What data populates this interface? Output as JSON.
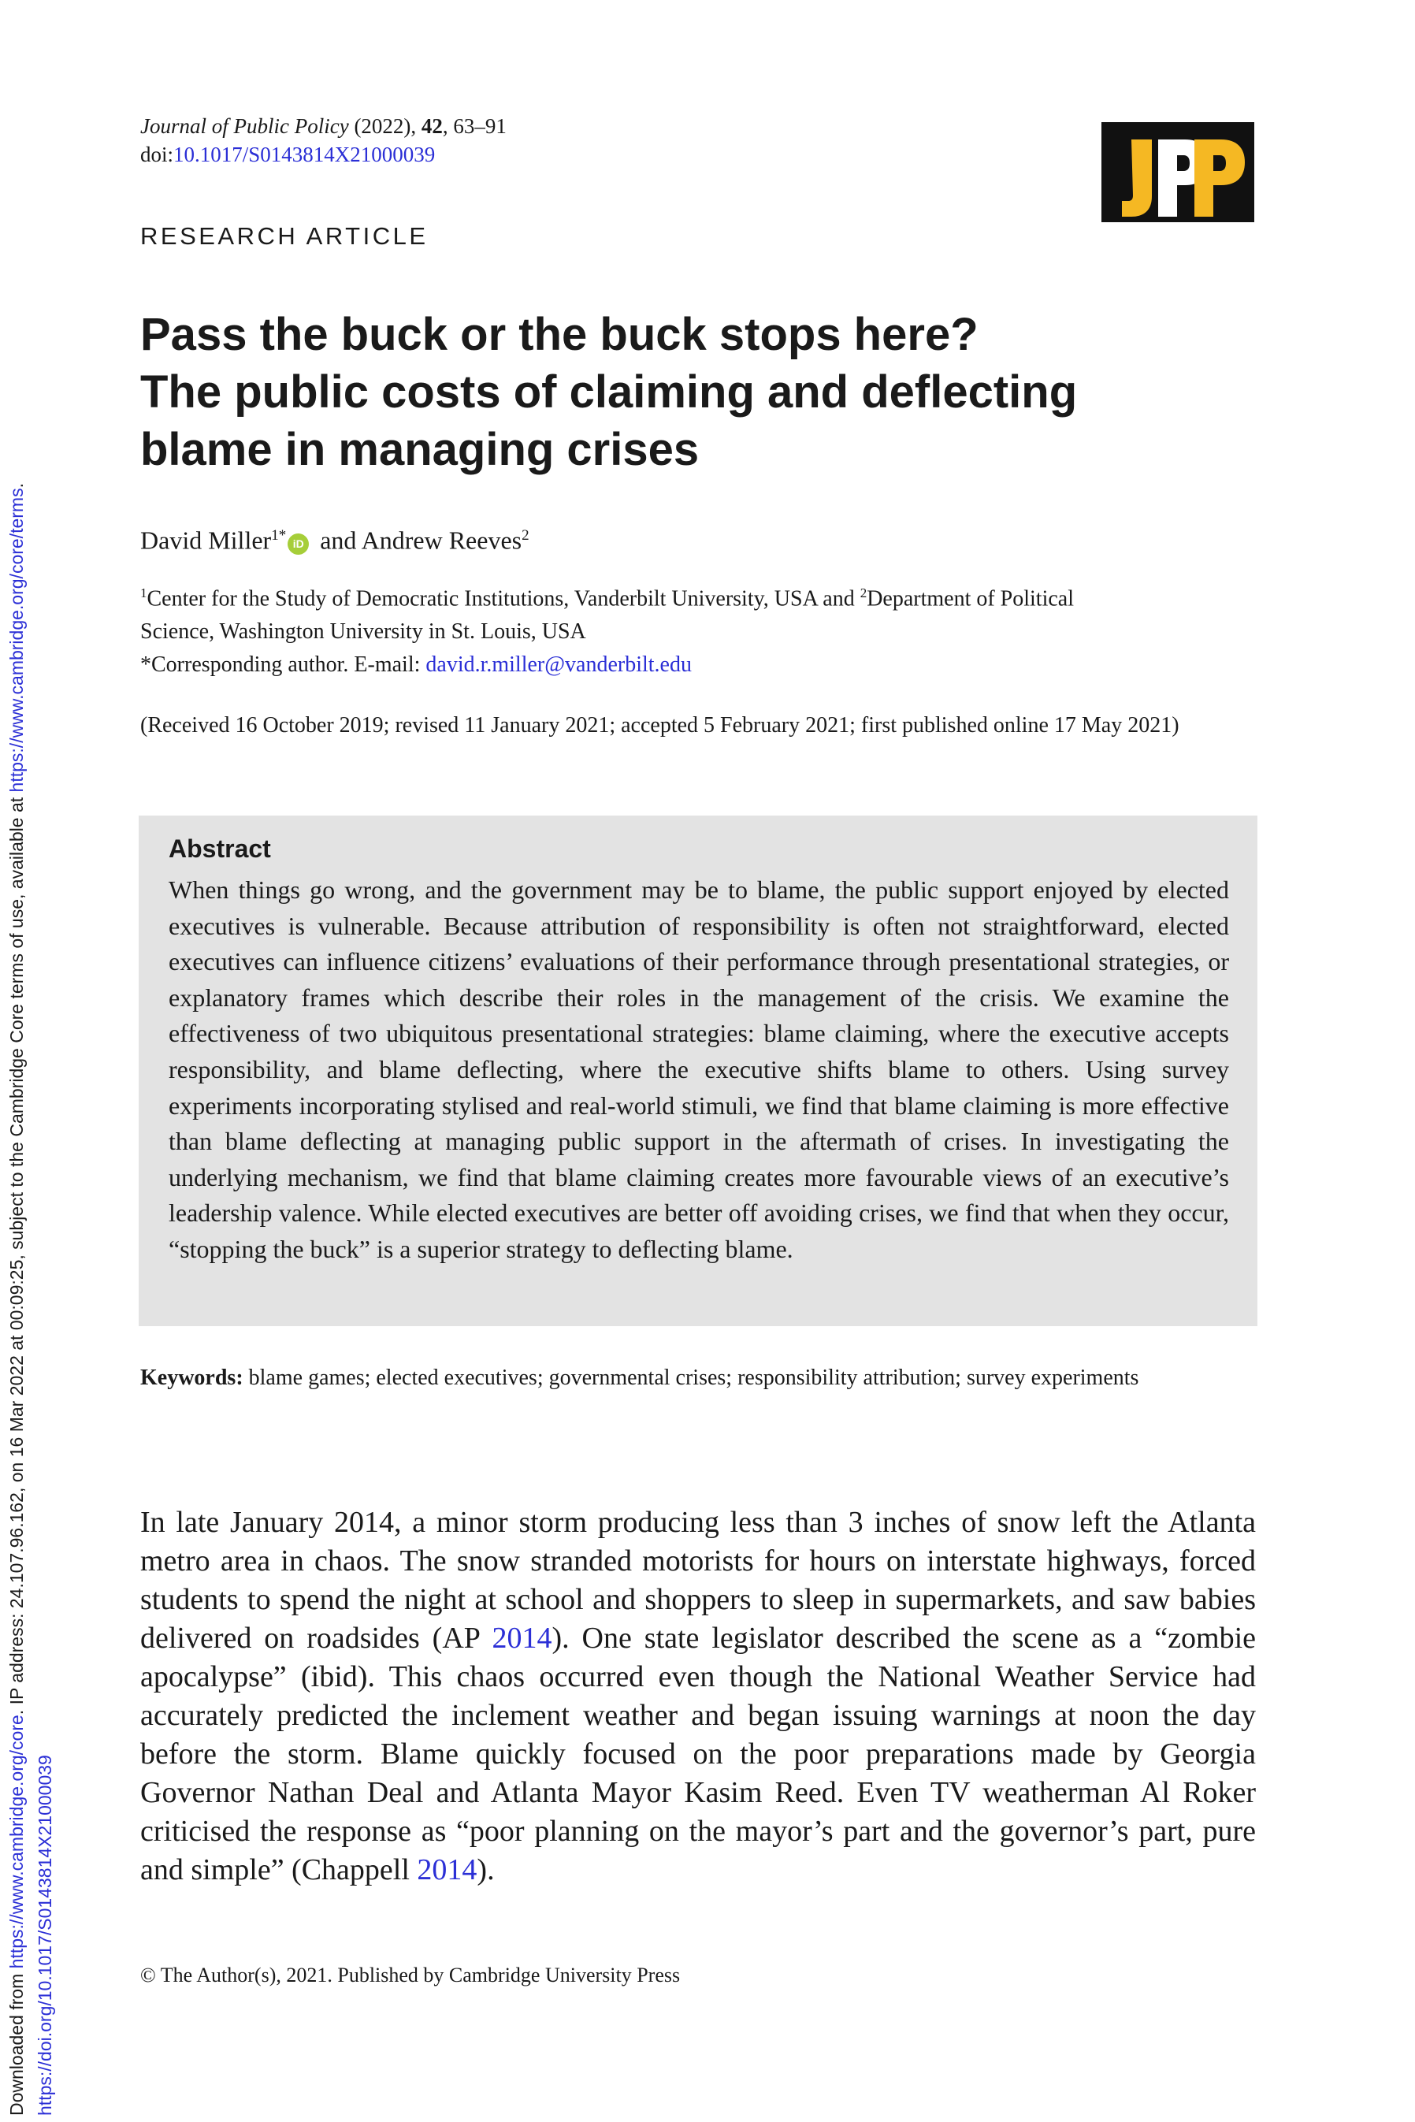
{
  "side_strip": {
    "line1_prefix": "Downloaded from ",
    "line1_link1": "https://www.cambridge.org/core",
    "line1_middle": ". IP address: 24.107.96.162, on 16 Mar 2022 at 00:09:25, subject to the Cambridge Core terms of use, available at ",
    "line1_link2": "https://www.cambridge.org/core/terms",
    "line1_suffix": ".",
    "line2_link": "https://doi.org/10.1017/S0143814X21000039"
  },
  "journal": {
    "name": "Journal of Public Policy",
    "year": " (2022), ",
    "volume": "42",
    "pages": ", 63–91",
    "doi_prefix": "doi:",
    "doi": "10.1017/S0143814X21000039",
    "logo_text": "JPP"
  },
  "article_type": "RESEARCH ARTICLE",
  "title_lines": [
    "Pass the buck or the buck stops here?",
    "The public costs of claiming and deflecting",
    "blame in managing crises"
  ],
  "authors": {
    "author1": "David Miller",
    "author1_sup": "1",
    "author1_mark": "*",
    "orcid_label": "iD",
    "joiner": " and ",
    "author2": "Andrew Reeves",
    "author2_sup": "2"
  },
  "affiliations": {
    "sup1": "1",
    "inst1": "Center for the Study of Democratic Institutions, Vanderbilt University, USA and ",
    "sup2": "2",
    "inst2_part1": "Department of Political",
    "inst2_part2": "Science, Washington University in St. Louis, USA",
    "corresponding_label": "*Corresponding author. E-mail: ",
    "email": "david.r.miller@vanderbilt.edu"
  },
  "received": "(Received 16 October 2019; revised 11 January 2021; accepted 5 February 2021; first published online 17 May 2021)",
  "abstract": {
    "heading": "Abstract",
    "text": "When things go wrong, and the government may be to blame, the public support enjoyed by elected executives is vulnerable. Because attribution of responsibility is often not straightforward, elected executives can influence citizens’ evaluations of their performance through presentational strategies, or explanatory frames which describe their roles in the management of the crisis. We examine the effectiveness of two ubiquitous presentational strategies: blame claiming, where the executive accepts responsibility, and blame deflecting, where the executive shifts blame to others. Using survey experiments incorporating stylised and real-world stimuli, we find that blame claiming is more effective than blame deflecting at managing public support in the aftermath of crises. In investigating the underlying mechanism, we find that blame claiming creates more favourable views of an executive’s leadership valence. While elected executives are better off avoiding crises, we find that when they occur, “stopping the buck” is a superior strategy to deflecting blame."
  },
  "keywords": {
    "label": "Keywords:",
    "text": " blame games; elected executives; governmental crises; responsibility attribution; survey experiments"
  },
  "body": {
    "part1": "In late January 2014, a minor storm producing less than 3 inches of snow left the Atlanta metro area in chaos. The snow stranded motorists for hours on interstate highways, forced students to spend the night at school and shoppers to sleep in supermarkets, and saw babies delivered on roadsides (AP ",
    "cite1": "2014",
    "part2": "). One state legislator described the scene as a “zombie apocalypse” (ibid). This chaos occurred even though the National Weather Service had accurately predicted the inclement weather and began issuing warnings at noon the day before the storm. Blame quickly focused on the poor preparations made by Georgia Governor Nathan Deal and Atlanta Mayor Kasim Reed. Even TV weatherman Al Roker criticised the response as “poor planning on the mayor’s part and the governor’s part, pure and simple” (Chappell ",
    "cite2": "2014",
    "part3": ")."
  },
  "copyright": "© The Author(s), 2021. Published by Cambridge University Press",
  "colors": {
    "link": "#2b2fd6",
    "abstract_bg": "#e3e3e3",
    "logo_bg": "#111111",
    "logo_yellow": "#f5b823",
    "orcid_green": "#a6ce39"
  }
}
